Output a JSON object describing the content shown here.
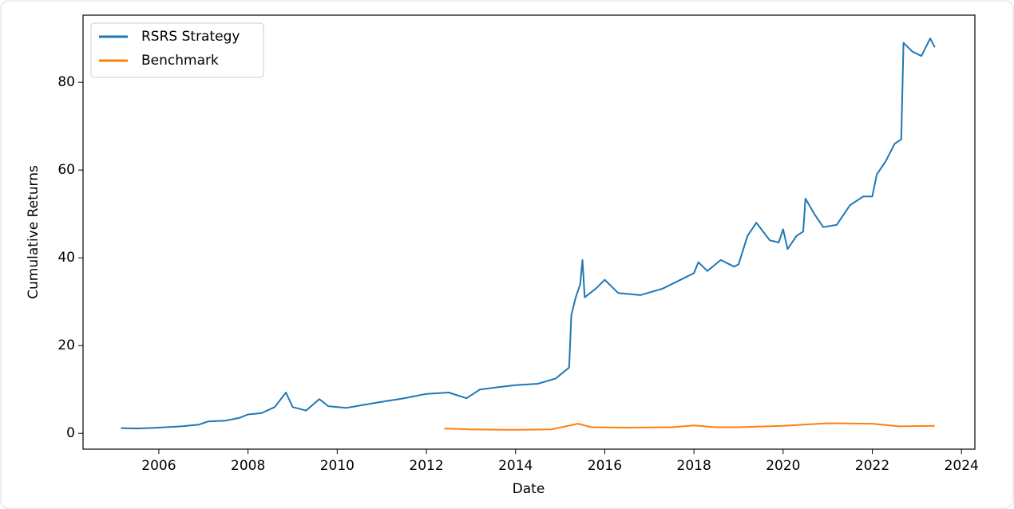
{
  "chart_data": {
    "type": "line",
    "x_label": "Date",
    "y_label": "Cumulative Returns",
    "xlim": [
      2004.3,
      2024.3
    ],
    "ylim": [
      -3.6,
      95.3
    ],
    "xticks": [
      2006,
      2008,
      2010,
      2012,
      2014,
      2016,
      2018,
      2020,
      2022,
      2024
    ],
    "yticks": [
      0,
      20,
      40,
      60,
      80
    ],
    "grid": false,
    "legend": "upper left",
    "series": [
      {
        "name": "RSRS Strategy",
        "color": "#1f77b4",
        "x": [
          2005.15,
          2005.5,
          2006.0,
          2006.5,
          2006.9,
          2007.1,
          2007.5,
          2007.8,
          2008.0,
          2008.3,
          2008.6,
          2008.85,
          2009.0,
          2009.3,
          2009.6,
          2009.8,
          2010.2,
          2010.6,
          2011.0,
          2011.5,
          2012.0,
          2012.5,
          2012.9,
          2013.2,
          2013.6,
          2014.0,
          2014.5,
          2014.9,
          2015.2,
          2015.25,
          2015.35,
          2015.45,
          2015.5,
          2015.55,
          2015.8,
          2016.0,
          2016.3,
          2016.8,
          2017.3,
          2017.7,
          2018.0,
          2018.1,
          2018.3,
          2018.6,
          2018.9,
          2019.0,
          2019.2,
          2019.4,
          2019.7,
          2019.9,
          2020.0,
          2020.1,
          2020.3,
          2020.45,
          2020.5,
          2020.7,
          2020.9,
          2021.2,
          2021.5,
          2021.8,
          2022.0,
          2022.1,
          2022.3,
          2022.4,
          2022.5,
          2022.65,
          2022.7,
          2022.9,
          2023.1,
          2023.3,
          2023.4
        ],
        "values": [
          1.2,
          1.1,
          1.3,
          1.6,
          2.0,
          2.7,
          2.9,
          3.5,
          4.3,
          4.6,
          6.0,
          9.3,
          6.0,
          5.2,
          7.8,
          6.2,
          5.8,
          6.5,
          7.2,
          8.0,
          9.0,
          9.3,
          8.0,
          10.0,
          10.5,
          11.0,
          11.3,
          12.5,
          15,
          27,
          31,
          34,
          39.5,
          31,
          33,
          35,
          32,
          31.5,
          33,
          35,
          36.5,
          39,
          37,
          39.5,
          38,
          38.5,
          45,
          48,
          44,
          43.5,
          46.5,
          42,
          45,
          46,
          53.5,
          50,
          47,
          47.5,
          52,
          54,
          54,
          59,
          62,
          64,
          66,
          67,
          89,
          87,
          86,
          90,
          88
        ]
      },
      {
        "name": "Benchmark",
        "color": "#ff7f0e",
        "x": [
          2012.4,
          2013.0,
          2014.0,
          2014.8,
          2015.4,
          2015.7,
          2016.5,
          2017.5,
          2018.0,
          2018.5,
          2019.0,
          2020.0,
          2021.0,
          2022.0,
          2022.6,
          2023.4
        ],
        "values": [
          1.1,
          0.9,
          0.8,
          0.9,
          2.2,
          1.4,
          1.3,
          1.4,
          1.8,
          1.4,
          1.4,
          1.7,
          2.3,
          2.2,
          1.6,
          1.7
        ]
      }
    ]
  }
}
